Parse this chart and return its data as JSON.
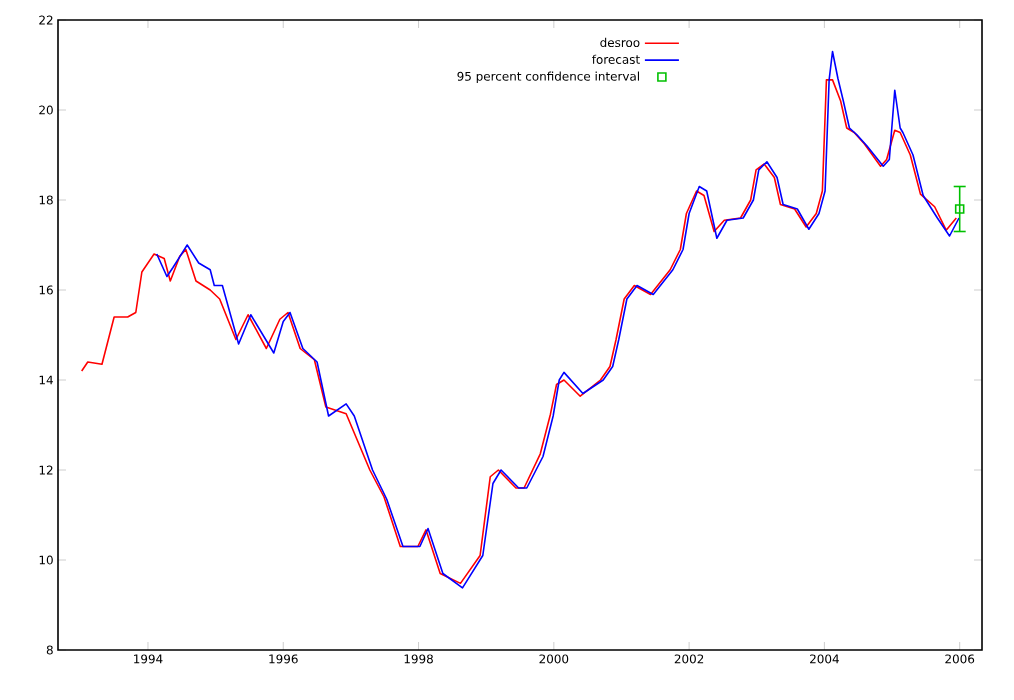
{
  "chart_data": {
    "type": "line",
    "xlim": [
      1992.67,
      2006.33
    ],
    "ylim": [
      8,
      22
    ],
    "xticks": [
      1994,
      1996,
      1998,
      2000,
      2002,
      2004,
      2006
    ],
    "yticks": [
      8,
      10,
      12,
      14,
      16,
      18,
      20,
      22
    ],
    "legend": "top",
    "grid": false,
    "series": [
      {
        "name": "desroo",
        "color": "#ff0000",
        "x": [
          1993.02,
          1993.11,
          1993.32,
          1993.5,
          1993.7,
          1993.82,
          1993.91,
          1994.09,
          1994.24,
          1994.33,
          1994.47,
          1994.56,
          1994.71,
          1994.92,
          1995.06,
          1995.3,
          1995.48,
          1995.75,
          1995.95,
          1996.07,
          1996.25,
          1996.46,
          1996.63,
          1996.93,
          1997.28,
          1997.49,
          1997.73,
          1997.99,
          1998.11,
          1998.32,
          1998.62,
          1998.91,
          1999.06,
          1999.18,
          1999.44,
          1999.56,
          1999.8,
          1999.95,
          2000.04,
          2000.15,
          2000.39,
          2000.69,
          2000.83,
          2000.92,
          2001.04,
          2001.19,
          2001.43,
          2001.72,
          2001.87,
          2001.96,
          2002.11,
          2002.22,
          2002.37,
          2002.52,
          2002.76,
          2002.91,
          2002.99,
          2003.11,
          2003.26,
          2003.35,
          2003.56,
          2003.73,
          2003.88,
          2003.97,
          2004.03,
          2004.12,
          2004.24,
          2004.33,
          2004.44,
          2004.59,
          2004.83,
          2004.92,
          2005.04,
          2005.12,
          2005.27,
          2005.42,
          2005.63,
          2005.8,
          2005.95
        ],
        "values": [
          14.2,
          14.4,
          14.35,
          15.4,
          15.4,
          15.5,
          16.4,
          16.8,
          16.7,
          16.2,
          16.75,
          16.9,
          16.2,
          16.0,
          15.8,
          14.9,
          15.45,
          14.7,
          15.35,
          15.5,
          14.7,
          14.45,
          13.4,
          13.25,
          12.0,
          11.4,
          10.3,
          10.3,
          10.67,
          9.7,
          9.48,
          10.1,
          11.85,
          12.0,
          11.6,
          11.6,
          12.36,
          13.24,
          13.9,
          14.0,
          13.64,
          14.0,
          14.3,
          14.9,
          15.8,
          16.1,
          15.9,
          16.45,
          16.9,
          17.7,
          18.2,
          18.1,
          17.3,
          17.55,
          17.6,
          18.0,
          18.67,
          18.8,
          18.5,
          17.9,
          17.8,
          17.4,
          17.7,
          18.2,
          20.67,
          20.67,
          20.2,
          19.6,
          19.5,
          19.25,
          18.75,
          18.9,
          19.55,
          19.5,
          19.0,
          18.13,
          17.85,
          17.33,
          17.6
        ]
      },
      {
        "name": "forecast",
        "color": "#0000ff",
        "x": [
          1994.13,
          1994.28,
          1994.37,
          1994.58,
          1994.75,
          1994.92,
          1994.98,
          1995.1,
          1995.34,
          1995.52,
          1995.86,
          1996.0,
          1996.1,
          1996.29,
          1996.5,
          1996.67,
          1996.93,
          1997.05,
          1997.32,
          1997.53,
          1997.77,
          1998.02,
          1998.14,
          1998.36,
          1998.65,
          1998.95,
          1999.1,
          1999.22,
          1999.48,
          1999.6,
          1999.84,
          1999.99,
          2000.08,
          2000.15,
          2000.43,
          2000.73,
          2000.87,
          2000.96,
          2001.08,
          2001.23,
          2001.47,
          2001.76,
          2001.91,
          2002.0,
          2002.15,
          2002.26,
          2002.41,
          2002.56,
          2002.8,
          2002.95,
          2003.03,
          2003.15,
          2003.3,
          2003.39,
          2003.6,
          2003.77,
          2003.92,
          2004.01,
          2004.07,
          2004.12,
          2004.2,
          2004.28,
          2004.37,
          2004.48,
          2004.63,
          2004.87,
          2004.96,
          2005.04,
          2005.12,
          2005.16,
          2005.31,
          2005.46,
          2005.67,
          2005.85,
          2005.99
        ],
        "values": [
          16.8,
          16.3,
          16.5,
          17.0,
          16.6,
          16.45,
          16.1,
          16.1,
          14.8,
          15.45,
          14.6,
          15.3,
          15.5,
          14.7,
          14.4,
          13.2,
          13.47,
          13.2,
          12.0,
          11.35,
          10.3,
          10.3,
          10.7,
          9.7,
          9.38,
          10.1,
          11.7,
          12.0,
          11.6,
          11.6,
          12.3,
          13.2,
          14.0,
          14.17,
          13.7,
          14.0,
          14.3,
          14.9,
          15.8,
          16.1,
          15.9,
          16.45,
          16.9,
          17.7,
          18.3,
          18.2,
          17.15,
          17.55,
          17.6,
          18.0,
          18.67,
          18.85,
          18.5,
          17.9,
          17.8,
          17.35,
          17.7,
          18.2,
          20.67,
          21.3,
          20.7,
          20.2,
          19.6,
          19.45,
          19.2,
          18.75,
          18.9,
          20.44,
          19.6,
          19.5,
          19.0,
          18.1,
          17.6,
          17.2,
          17.6
        ]
      },
      {
        "name": "95 percent confidence interval",
        "color": "#00c000",
        "type": "scatter",
        "marker": "square",
        "x": [
          2006.0
        ],
        "values": [
          17.8
        ],
        "errors": [
          0.5
        ]
      }
    ]
  }
}
